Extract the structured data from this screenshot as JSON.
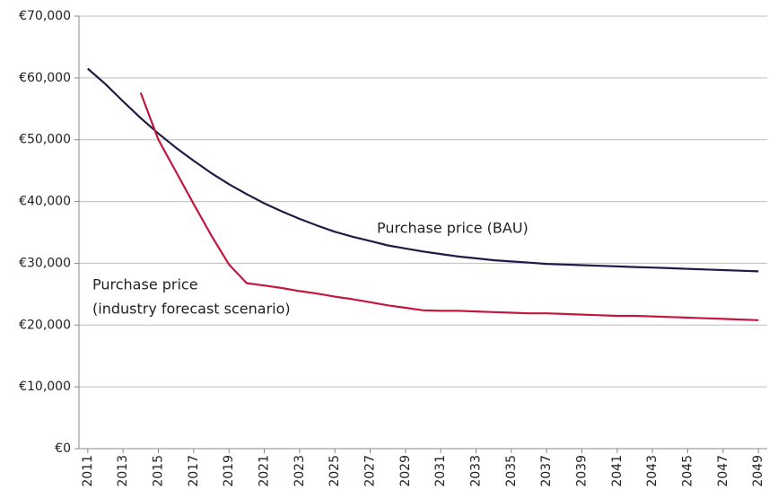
{
  "chart_data": {
    "type": "line",
    "x": [
      2011,
      2012,
      2013,
      2014,
      2015,
      2016,
      2017,
      2018,
      2019,
      2020,
      2021,
      2022,
      2023,
      2024,
      2025,
      2026,
      2027,
      2028,
      2029,
      2030,
      2031,
      2032,
      2033,
      2034,
      2035,
      2036,
      2037,
      2038,
      2039,
      2040,
      2041,
      2042,
      2043,
      2044,
      2045,
      2046,
      2047,
      2048,
      2049
    ],
    "series": [
      {
        "color": "#1c1c45",
        "values": [
          61500,
          59000,
          56200,
          53500,
          51000,
          48700,
          46600,
          44600,
          42800,
          41200,
          39700,
          38400,
          37200,
          36100,
          35100,
          34300,
          33600,
          32900,
          32400,
          31900,
          31500,
          31100,
          30800,
          30500,
          30300,
          30100,
          29900,
          29800,
          29700,
          29600,
          29500,
          29400,
          29300,
          29200,
          29100,
          29000,
          28900,
          28800,
          28700
        ]
      },
      {
        "color": "#c4173f",
        "values": [
          null,
          null,
          null,
          57600,
          50000,
          44800,
          39600,
          34500,
          29800,
          26800,
          26400,
          26000,
          25500,
          25100,
          24600,
          24200,
          23700,
          23200,
          22800,
          22400,
          22300,
          22300,
          22200,
          22100,
          22000,
          21900,
          21900,
          21800,
          21700,
          21600,
          21500,
          21500,
          21400,
          21300,
          21200,
          21100,
          21000,
          20900,
          20800
        ]
      }
    ],
    "annotations": [
      {
        "lines": [
          "Purchase price (BAU)"
        ]
      },
      {
        "lines": [
          "Purchase price",
          "(industry forecast scenario)"
        ]
      }
    ],
    "xlim": [
      2010.5,
      2049.5
    ],
    "xticks": [
      2011,
      2013,
      2015,
      2017,
      2019,
      2021,
      2023,
      2025,
      2027,
      2029,
      2031,
      2033,
      2035,
      2037,
      2039,
      2041,
      2043,
      2045,
      2047,
      2049
    ],
    "ylim": [
      0,
      70000
    ],
    "yticks": [
      {
        "value": 0,
        "label": "€0"
      },
      {
        "value": 10000,
        "label": "€10,000"
      },
      {
        "value": 20000,
        "label": "€20,000"
      },
      {
        "value": 30000,
        "label": "€30,000"
      },
      {
        "value": 40000,
        "label": "€40,000"
      },
      {
        "value": 50000,
        "label": "€50,000"
      },
      {
        "value": 60000,
        "label": "€60,000"
      },
      {
        "value": 70000,
        "label": "€70,000"
      }
    ],
    "grid": true
  }
}
